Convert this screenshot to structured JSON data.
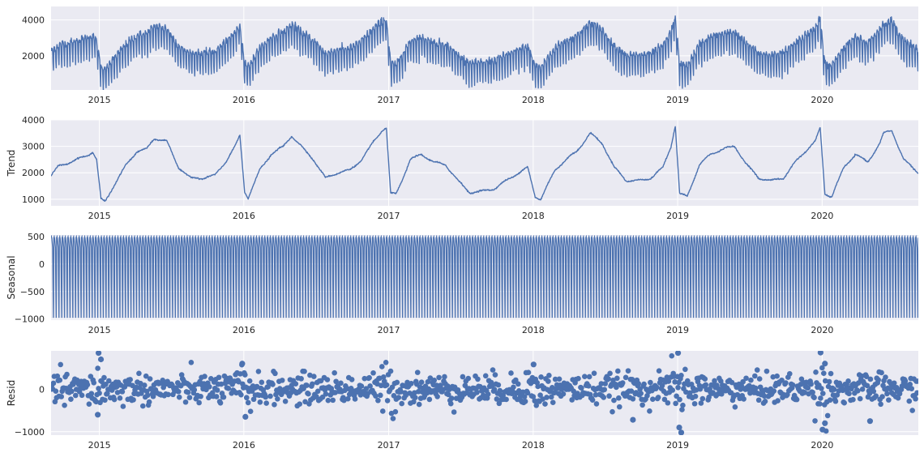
{
  "chart_data": [
    {
      "type": "line",
      "title": "",
      "ylabel": "",
      "xlim": [
        "2014-09-01",
        "2020-08-31"
      ],
      "ylim": [
        100,
        4750
      ],
      "yticks": [
        2000,
        4000
      ],
      "ytick_labels": [
        "2000",
        "4000"
      ],
      "xticks": [
        "2015",
        "2016",
        "2017",
        "2018",
        "2019",
        "2020"
      ],
      "grid": true,
      "series": [
        {
          "name": "",
          "description_of_shape": "daily values oscillating weekly around the trend with amplitude about ±800",
          "sample_x": [
            "2014-09-01",
            "2014-11-01",
            "2014-12-25",
            "2015-01-05",
            "2015-05-01",
            "2015-09-01",
            "2015-12-20",
            "2016-01-02",
            "2016-05-01",
            "2016-09-01",
            "2016-12-25",
            "2017-01-02",
            "2017-05-01",
            "2017-08-01",
            "2017-12-20",
            "2018-01-02",
            "2018-05-01",
            "2018-09-01",
            "2018-12-25",
            "2019-01-02",
            "2019-05-01",
            "2019-09-01",
            "2019-12-25",
            "2020-01-02",
            "2020-06-01",
            "2020-08-31"
          ],
          "sample_y": [
            2200,
            2400,
            3000,
            1100,
            3200,
            1800,
            3500,
            1200,
            3600,
            1900,
            3700,
            1100,
            2500,
            1300,
            2300,
            1200,
            3600,
            1700,
            3700,
            1200,
            2900,
            1800,
            3800,
            1100,
            3900,
            2000
          ]
        }
      ]
    },
    {
      "type": "line",
      "ylabel": "Trend",
      "xlim": [
        "2014-09-01",
        "2020-08-31"
      ],
      "ylim": [
        750,
        4000
      ],
      "yticks": [
        1000,
        2000,
        3000,
        4000
      ],
      "ytick_labels": [
        "1000",
        "2000",
        "3000",
        "4000"
      ],
      "xticks": [
        "2015",
        "2016",
        "2017",
        "2018",
        "2019",
        "2020"
      ],
      "grid": true,
      "series": [
        {
          "name": "",
          "x": [
            "2014-09-01",
            "2014-09-20",
            "2014-10-10",
            "2014-11-05",
            "2014-12-01",
            "2014-12-15",
            "2014-12-25",
            "2015-01-05",
            "2015-01-15",
            "2015-02-10",
            "2015-03-10",
            "2015-04-05",
            "2015-05-01",
            "2015-05-20",
            "2015-06-20",
            "2015-07-20",
            "2015-08-20",
            "2015-09-20",
            "2015-10-20",
            "2015-11-20",
            "2015-12-10",
            "2015-12-22",
            "2016-01-03",
            "2016-01-12",
            "2016-02-10",
            "2016-03-10",
            "2016-04-10",
            "2016-05-01",
            "2016-05-25",
            "2016-06-25",
            "2016-07-25",
            "2016-08-25",
            "2016-09-25",
            "2016-10-25",
            "2016-11-25",
            "2016-12-15",
            "2016-12-26",
            "2017-01-06",
            "2017-01-20",
            "2017-02-25",
            "2017-03-25",
            "2017-04-25",
            "2017-05-25",
            "2017-06-25",
            "2017-07-25",
            "2017-08-25",
            "2017-09-25",
            "2017-10-25",
            "2017-11-25",
            "2017-12-18",
            "2018-01-06",
            "2018-01-20",
            "2018-02-25",
            "2018-03-25",
            "2018-04-20",
            "2018-05-01",
            "2018-05-25",
            "2018-06-25",
            "2018-07-25",
            "2018-08-25",
            "2018-09-25",
            "2018-10-25",
            "2018-11-25",
            "2018-12-15",
            "2018-12-26",
            "2019-01-06",
            "2019-01-25",
            "2019-02-25",
            "2019-03-25",
            "2019-04-25",
            "2019-05-25",
            "2019-06-25",
            "2019-07-25",
            "2019-08-25",
            "2019-09-25",
            "2019-10-25",
            "2019-11-25",
            "2019-12-15",
            "2019-12-27",
            "2020-01-08",
            "2020-01-25",
            "2020-02-25",
            "2020-03-25",
            "2020-04-25",
            "2020-05-25",
            "2020-06-05",
            "2020-06-25",
            "2020-07-25",
            "2020-08-31"
          ],
          "values": [
            1900,
            2250,
            2350,
            2500,
            2650,
            2800,
            2500,
            1000,
            900,
            1600,
            2300,
            2800,
            2900,
            3300,
            3200,
            2200,
            1800,
            1800,
            1900,
            2500,
            3000,
            3400,
            1300,
            1050,
            2100,
            2700,
            3000,
            3400,
            3000,
            2500,
            1800,
            2000,
            2100,
            2500,
            3200,
            3600,
            3700,
            1200,
            1200,
            2500,
            2700,
            2400,
            2300,
            1700,
            1250,
            1300,
            1400,
            1700,
            2000,
            2200,
            1100,
            1000,
            2100,
            2500,
            2800,
            3000,
            3500,
            3100,
            2200,
            1700,
            1700,
            1800,
            2200,
            3000,
            3800,
            1200,
            1100,
            2300,
            2700,
            2900,
            3000,
            2300,
            1800,
            1700,
            1800,
            2400,
            2900,
            3200,
            3700,
            1200,
            1100,
            2200,
            2700,
            2400,
            3100,
            3500,
            3600,
            2500,
            2000
          ]
        }
      ]
    },
    {
      "type": "line",
      "ylabel": "Seasonal",
      "xlim": [
        "2014-09-01",
        "2020-08-31"
      ],
      "ylim": [
        -1020,
        530
      ],
      "yticks": [
        -1000,
        -500,
        0,
        500
      ],
      "ytick_labels": [
        "−1000",
        "−500",
        "0",
        "500"
      ],
      "xticks": [
        "2015",
        "2016",
        "2017",
        "2018",
        "2019",
        "2020"
      ],
      "grid": true,
      "series": [
        {
          "name": "",
          "period_days": 7,
          "one_period_values": [
            480,
            500,
            460,
            380,
            300,
            -400,
            -980
          ]
        }
      ]
    },
    {
      "type": "scatter",
      "ylabel": "Resid",
      "xlim": [
        "2014-09-01",
        "2020-08-31"
      ],
      "ylim": [
        -1080,
        900
      ],
      "yticks": [
        -1000,
        0
      ],
      "ytick_labels": [
        "−1000",
        "0"
      ],
      "xticks": [
        "2015",
        "2016",
        "2017",
        "2018",
        "2019",
        "2020"
      ],
      "grid": true,
      "series": [
        {
          "name": "",
          "notable_points_x": [
            "2014-12-30",
            "2015-01-05",
            "2014-12-28",
            "2015-12-28",
            "2016-01-05",
            "2018-01-02",
            "2018-09-10",
            "2019-01-02",
            "2019-01-05",
            "2019-01-10",
            "2019-12-28",
            "2020-01-02",
            "2020-01-08",
            "2020-01-08",
            "2020-05-01"
          ],
          "notable_points_y": [
            850,
            700,
            -600,
            600,
            -650,
            580,
            -720,
            850,
            -900,
            -1020,
            860,
            -950,
            -800,
            600,
            -750
          ],
          "spread_typical": 250
        }
      ]
    }
  ]
}
